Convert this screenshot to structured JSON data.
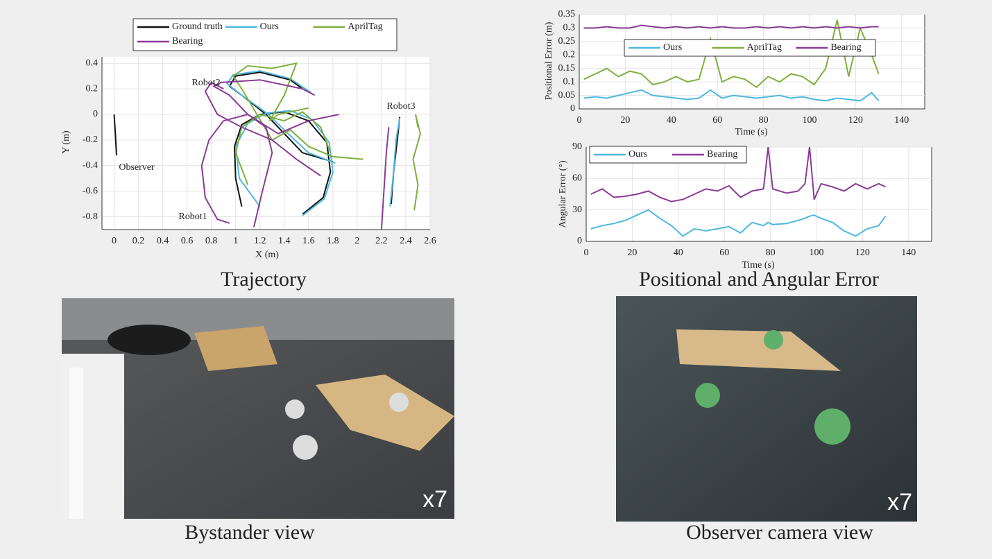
{
  "chart_data": [
    {
      "type": "line",
      "xlabel": "X (m)",
      "ylabel": "Y (m)",
      "grid": true,
      "legend": "top",
      "xlim": [
        -0.1,
        2.6
      ],
      "ylim": [
        -0.9,
        0.45
      ],
      "xticks": [
        0,
        0.2,
        0.4,
        0.6,
        0.8,
        1,
        1.2,
        1.4,
        1.6,
        1.8,
        2,
        2.2,
        2.4,
        2.6
      ],
      "yticks": [
        -0.8,
        -0.6,
        -0.4,
        -0.2,
        0,
        0.2,
        0.4
      ],
      "annotations": [
        "Robot2",
        "Robot3",
        "Observer",
        "Robot1"
      ],
      "series": [
        {
          "name": "Ground truth",
          "color": "#111111",
          "x": [
            0,
            0.01,
            0.02,
            null,
            1.05,
            1.0,
            0.99,
            1.05,
            1.2,
            1.4,
            1.6,
            1.75,
            1.78,
            1.72,
            1.55,
            null,
            1.8,
            1.55,
            1.4,
            1.25,
            1.05,
            0.95,
            1.0,
            1.2,
            1.45,
            1.55,
            null,
            2.28,
            2.3,
            2.33,
            2.35
          ],
          "values": [
            0,
            -0.15,
            -0.32,
            null,
            -0.72,
            -0.5,
            -0.25,
            -0.08,
            0.0,
            0.02,
            -0.05,
            -0.22,
            -0.45,
            -0.65,
            -0.78,
            null,
            -0.37,
            -0.3,
            -0.15,
            0.0,
            0.15,
            0.22,
            0.3,
            0.33,
            0.27,
            0.2,
            null,
            -0.7,
            -0.45,
            -0.2,
            -0.02
          ]
        },
        {
          "name": "Ours",
          "color": "#4db8e0",
          "x": [
            1.2,
            1.03,
            1.0,
            1.1,
            1.25,
            1.45,
            1.63,
            1.77,
            1.8,
            1.73,
            1.55,
            null,
            1.82,
            1.6,
            1.42,
            1.27,
            1.05,
            0.93,
            0.98,
            1.2,
            1.45,
            1.62,
            null,
            2.27,
            2.3,
            2.32,
            2.35
          ],
          "values": [
            -0.72,
            -0.5,
            -0.25,
            -0.07,
            0.01,
            0.03,
            -0.04,
            -0.22,
            -0.45,
            -0.66,
            -0.79,
            null,
            -0.38,
            -0.3,
            -0.14,
            0.0,
            0.15,
            0.24,
            0.31,
            0.34,
            0.28,
            0.17,
            null,
            -0.72,
            -0.45,
            -0.2,
            -0.03
          ]
        },
        {
          "name": "AprilTag",
          "color": "#7db03c",
          "x": [
            1.1,
            1.0,
            1.05,
            1.2,
            1.4,
            1.55,
            1.7,
            1.78,
            null,
            2.05,
            1.8,
            1.6,
            1.45,
            1.3,
            1.05,
            0.98,
            1.1,
            1.3,
            1.5,
            1.4,
            1.28,
            1.35,
            1.6,
            null,
            2.47,
            2.5,
            2.46,
            2.52,
            2.48,
            2.5
          ],
          "values": [
            -0.55,
            -0.3,
            -0.1,
            0.0,
            -0.05,
            0.02,
            -0.1,
            -0.3,
            null,
            -0.35,
            -0.33,
            -0.25,
            -0.12,
            -0.2,
            0.2,
            0.3,
            0.38,
            0.36,
            0.4,
            0.15,
            -0.05,
            0.0,
            0.05,
            null,
            -0.75,
            -0.55,
            -0.35,
            -0.15,
            0.0,
            -0.1
          ]
        },
        {
          "name": "Bearing",
          "color": "#8b3a96",
          "x": [
            0.95,
            0.85,
            0.75,
            0.72,
            0.78,
            0.9,
            1.1,
            1.25,
            1.3,
            1.22,
            1.15,
            null,
            0.9,
            0.8,
            0.75,
            0.85,
            1.05,
            1.3,
            1.5,
            1.7,
            null,
            1.85,
            1.6,
            1.35,
            1.1,
            0.95,
            0.82,
            0.88,
            1.2,
            1.55,
            1.65,
            null,
            2.2,
            2.22,
            2.24,
            2.26
          ],
          "values": [
            -0.85,
            -0.82,
            -0.65,
            -0.4,
            -0.2,
            -0.05,
            0.0,
            -0.1,
            -0.3,
            -0.6,
            -0.88,
            null,
            0.2,
            0.25,
            0.18,
            0.0,
            -0.1,
            -0.2,
            -0.35,
            -0.48,
            null,
            0.0,
            -0.05,
            -0.15,
            0.0,
            0.15,
            0.22,
            0.25,
            0.27,
            0.2,
            0.15,
            null,
            -0.9,
            -0.6,
            -0.3,
            -0.1
          ]
        }
      ]
    },
    {
      "type": "line",
      "xlabel": "Time (s)",
      "ylabel": "Positional Error (m)",
      "grid": true,
      "legend": "upper center",
      "xlim": [
        0,
        150
      ],
      "ylim": [
        0,
        0.35
      ],
      "xticks": [
        0,
        20,
        40,
        60,
        80,
        100,
        120,
        140
      ],
      "yticks": [
        0,
        0.05,
        0.1,
        0.15,
        0.2,
        0.25,
        0.3,
        0.35
      ],
      "x": [
        2,
        7,
        12,
        17,
        22,
        27,
        32,
        37,
        42,
        47,
        52,
        57,
        62,
        67,
        72,
        77,
        82,
        87,
        92,
        97,
        102,
        107,
        112,
        117,
        122,
        127,
        130
      ],
      "series": [
        {
          "name": "Ours",
          "color": "#4db8e0",
          "values": [
            0.04,
            0.045,
            0.04,
            0.05,
            0.06,
            0.07,
            0.05,
            0.045,
            0.04,
            0.035,
            0.04,
            0.07,
            0.04,
            0.05,
            0.045,
            0.04,
            0.045,
            0.05,
            0.04,
            0.045,
            0.035,
            0.03,
            0.04,
            0.035,
            0.03,
            0.06,
            0.03
          ]
        },
        {
          "name": "AprilTag",
          "color": "#7db03c",
          "values": [
            0.11,
            0.13,
            0.15,
            0.12,
            0.14,
            0.13,
            0.09,
            0.1,
            0.12,
            0.1,
            0.11,
            0.26,
            0.1,
            0.12,
            0.11,
            0.08,
            0.12,
            0.1,
            0.13,
            0.12,
            0.09,
            0.15,
            0.33,
            0.12,
            0.3,
            0.2,
            0.13
          ]
        },
        {
          "name": "Bearing",
          "color": "#8b3a96",
          "values": [
            0.3,
            0.3,
            0.305,
            0.3,
            0.3,
            0.31,
            0.305,
            0.3,
            0.305,
            0.3,
            0.305,
            0.3,
            0.305,
            0.3,
            0.3,
            0.305,
            0.3,
            0.305,
            0.3,
            0.305,
            0.3,
            0.305,
            0.3,
            0.305,
            0.3,
            0.305,
            0.305
          ]
        }
      ]
    },
    {
      "type": "line",
      "xlabel": "Time (s)",
      "ylabel": "Angular Error (°)",
      "grid": true,
      "legend": "upper left",
      "xlim": [
        0,
        150
      ],
      "ylim": [
        0,
        90
      ],
      "xticks": [
        0,
        20,
        40,
        60,
        80,
        100,
        120,
        140
      ],
      "yticks": [
        0,
        30,
        60,
        90
      ],
      "x": [
        2,
        7,
        12,
        17,
        22,
        27,
        32,
        37,
        42,
        47,
        52,
        57,
        62,
        67,
        72,
        77,
        79,
        81,
        87,
        92,
        95,
        97,
        99,
        102,
        107,
        112,
        117,
        122,
        127,
        130
      ],
      "series": [
        {
          "name": "Ours",
          "color": "#4db8e0",
          "values": [
            12,
            15,
            17,
            20,
            25,
            30,
            22,
            15,
            5,
            12,
            10,
            12,
            14,
            8,
            18,
            15,
            18,
            16,
            17,
            20,
            22,
            24,
            25,
            22,
            18,
            10,
            5,
            12,
            15,
            24
          ]
        },
        {
          "name": "Bearing",
          "color": "#8b3a96",
          "values": [
            45,
            50,
            42,
            43,
            45,
            48,
            42,
            38,
            40,
            45,
            50,
            48,
            53,
            42,
            48,
            50,
            90,
            50,
            46,
            48,
            55,
            90,
            40,
            55,
            52,
            48,
            55,
            50,
            55,
            52
          ]
        }
      ]
    }
  ],
  "captions": [
    "Trajectory",
    "Positional and Angular Error",
    "Bystander view",
    "Observer camera view"
  ],
  "speed_labels": [
    "x7",
    "x7"
  ]
}
